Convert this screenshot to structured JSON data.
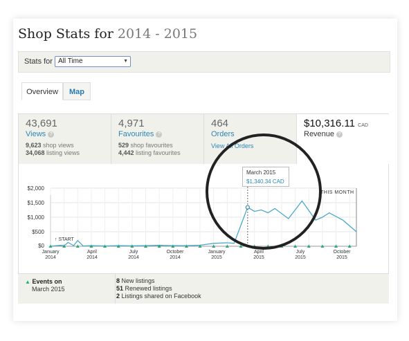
{
  "header": {
    "title_prefix": "Shop Stats for",
    "title_year": "2014 - 2015"
  },
  "stats_for": {
    "label": "Stats for",
    "selected": "All Time"
  },
  "tabs": [
    {
      "label": "Overview"
    },
    {
      "label": "Map"
    }
  ],
  "stats": {
    "views": {
      "value": "43,691",
      "name": "Views",
      "line1_num": "9,623",
      "line1_txt": "shop views",
      "line2_num": "34,068",
      "line2_txt": "listing views"
    },
    "favourites": {
      "value": "4,971",
      "name": "Favourites",
      "line1_num": "529",
      "line1_txt": "shop favourites",
      "line2_num": "4,442",
      "line2_txt": "listing favourites"
    },
    "orders": {
      "value": "464",
      "name": "Orders",
      "link": "View All Orders"
    },
    "revenue": {
      "value": "$10,316.11",
      "currency": "CAD",
      "name": "Revenue"
    }
  },
  "icons": {
    "help": "question-icon",
    "event": "triangle-icon",
    "start": "start-marker-icon"
  },
  "colors": {
    "line": "#4aa8c8",
    "link": "#2b86b4",
    "event": "#2aa87a"
  },
  "chart_data": {
    "type": "line",
    "y_ticks": [
      "$2,000",
      "$1,500",
      "$1,000",
      "$500",
      "$0"
    ],
    "ylim": [
      0,
      2000
    ],
    "x_labels": [
      [
        "January",
        "2014"
      ],
      [
        "April",
        "2014"
      ],
      [
        "July",
        "2014"
      ],
      [
        "October",
        "2014"
      ],
      [
        "January",
        "2015"
      ],
      [
        "April",
        "2015"
      ],
      [
        "July",
        "2015"
      ],
      [
        "October",
        "2015"
      ]
    ],
    "points": [
      [
        0,
        0
      ],
      [
        0.7,
        30
      ],
      [
        1,
        20
      ],
      [
        1.3,
        130
      ],
      [
        1.7,
        20
      ],
      [
        2,
        200
      ],
      [
        2.4,
        10
      ],
      [
        3,
        20
      ],
      [
        4,
        10
      ],
      [
        5,
        20
      ],
      [
        6,
        15
      ],
      [
        7,
        20
      ],
      [
        8,
        30
      ],
      [
        9,
        20
      ],
      [
        10,
        20
      ],
      [
        11,
        35
      ],
      [
        12,
        100
      ],
      [
        13,
        120
      ],
      [
        13.5,
        100
      ],
      [
        14.5,
        1340.34
      ],
      [
        15,
        1200
      ],
      [
        15.5,
        1250
      ],
      [
        16,
        1150
      ],
      [
        16.5,
        1300
      ],
      [
        17.5,
        950
      ],
      [
        18.5,
        1560
      ],
      [
        19.5,
        900
      ],
      [
        20,
        1000
      ],
      [
        20.5,
        1150
      ],
      [
        21.5,
        900
      ],
      [
        22.5,
        500
      ]
    ],
    "events_at": [
      0,
      1,
      2,
      3,
      4,
      5,
      6,
      7,
      8,
      9,
      10,
      11,
      12,
      13,
      14,
      15,
      16,
      17,
      18,
      19,
      20,
      21,
      22
    ],
    "highlight": {
      "index": 19,
      "label": "March 2015",
      "value": "$1,340.34 CAD"
    },
    "start_label": "START",
    "this_month_label": "THIS MONTH"
  },
  "events": {
    "title": "Events on",
    "date": "March 2015",
    "items": [
      {
        "count": "8",
        "text": "New listings"
      },
      {
        "count": "51",
        "text": "Renewed listings"
      },
      {
        "count": "2",
        "text": "Listings shared on Facebook"
      }
    ]
  }
}
